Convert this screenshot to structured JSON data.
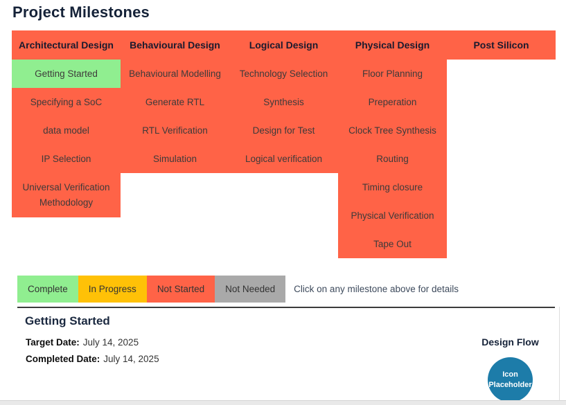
{
  "title": "Project Milestones",
  "board": {
    "columns": [
      {
        "header": "Architectural Design",
        "milestones": [
          {
            "label": "Getting Started",
            "status": "complete"
          },
          {
            "label": "Specifying a SoC",
            "status": "not-started"
          },
          {
            "label": "data model",
            "status": "not-started"
          },
          {
            "label": "IP Selection",
            "status": "not-started"
          },
          {
            "label": "Universal Verification Methodology",
            "status": "not-started"
          }
        ]
      },
      {
        "header": "Behavioural Design",
        "milestones": [
          {
            "label": "Behavioural Modelling",
            "status": "not-started"
          },
          {
            "label": "Generate RTL",
            "status": "not-started"
          },
          {
            "label": "RTL Verification",
            "status": "not-started"
          },
          {
            "label": "Simulation",
            "status": "not-started"
          }
        ]
      },
      {
        "header": "Logical Design",
        "milestones": [
          {
            "label": "Technology Selection",
            "status": "not-started"
          },
          {
            "label": "Synthesis",
            "status": "not-started"
          },
          {
            "label": "Design for Test",
            "status": "not-started"
          },
          {
            "label": "Logical verification",
            "status": "not-started"
          }
        ]
      },
      {
        "header": "Physical Design",
        "milestones": [
          {
            "label": "Floor Planning",
            "status": "not-started"
          },
          {
            "label": "Preperation",
            "status": "not-started"
          },
          {
            "label": "Clock Tree Synthesis",
            "status": "not-started"
          },
          {
            "label": "Routing",
            "status": "not-started"
          },
          {
            "label": "Timing closure",
            "status": "not-started"
          },
          {
            "label": "Physical Verification",
            "status": "not-started"
          },
          {
            "label": "Tape Out",
            "status": "not-started"
          }
        ]
      },
      {
        "header": "Post Silicon",
        "milestones": []
      }
    ]
  },
  "legend": {
    "items": [
      {
        "label": "Complete",
        "status": "complete",
        "color": "#90EE90"
      },
      {
        "label": "In Progress",
        "status": "in-progress",
        "color": "#FFC107"
      },
      {
        "label": "Not Started",
        "status": "not-started",
        "color": "#FF6347"
      },
      {
        "label": "Not Needed",
        "status": "not-needed",
        "color": "#A9A9A9"
      }
    ],
    "hint": "Click on any milestone above for details"
  },
  "details": {
    "heading": "Getting Started",
    "target_date_label": "Target Date:",
    "target_date_value": "July 14, 2025",
    "completed_date_label": "Completed Date:",
    "completed_date_value": "July 14, 2025"
  },
  "design_flow": {
    "label": "Design Flow",
    "icon_line1": "Icon",
    "icon_line2": "Placeholder"
  },
  "colors": {
    "milestone_default": "#FF6347",
    "milestone_complete": "#90EE90",
    "in_progress": "#FFC107",
    "not_needed": "#A9A9A9",
    "icon_circle": "#1D7CA9",
    "heading_navy": "#152238",
    "bottom_strip": "#E9E9E9"
  }
}
